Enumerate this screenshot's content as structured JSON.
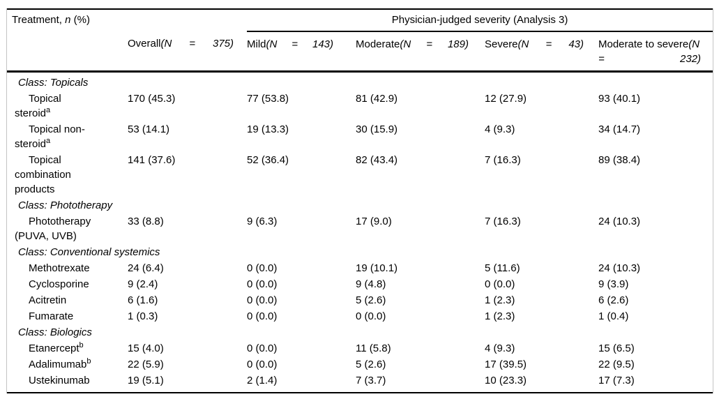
{
  "table": {
    "corner": {
      "pre": "Treatment, ",
      "n": "n",
      "post": " (%)"
    },
    "spanner": "Physician-judged severity (Analysis 3)",
    "columns": [
      {
        "label": "Overall",
        "n_open": "(N",
        "eq": "=",
        "n_close": "375)"
      },
      {
        "label": "Mild",
        "n_open": "(N",
        "eq": "=",
        "n_close": "143)"
      },
      {
        "label": "Moderate",
        "n_open": "(N",
        "eq": "=",
        "n_close": "189)"
      },
      {
        "label": "Severe",
        "n_open": "(N",
        "eq": "=",
        "n_close": "43)"
      },
      {
        "label": "Moderate to severe",
        "n_open": "(N",
        "eq": "=",
        "n_close": "232)"
      }
    ],
    "sections": [
      {
        "class_label": "Class: Topicals",
        "rows": [
          {
            "name": "Topical steroid",
            "sup": "a",
            "values": [
              "170 (45.3)",
              "77 (53.8)",
              "81 (42.9)",
              "12 (27.9)",
              "93 (40.1)"
            ]
          },
          {
            "name": "Topical non-steroid",
            "sup": "a",
            "values": [
              "53 (14.1)",
              "19 (13.3)",
              "30 (15.9)",
              "4 (9.3)",
              "34 (14.7)"
            ]
          },
          {
            "name": "Topical combination products",
            "sup": "",
            "values": [
              "141 (37.6)",
              "52 (36.4)",
              "82 (43.4)",
              "7 (16.3)",
              "89 (38.4)"
            ]
          }
        ]
      },
      {
        "class_label": "Class: Phototherapy",
        "rows": [
          {
            "name": "Phototherapy (PUVA, UVB)",
            "sup": "",
            "values": [
              "33 (8.8)",
              "9 (6.3)",
              "17 (9.0)",
              "7 (16.3)",
              "24 (10.3)"
            ]
          }
        ]
      },
      {
        "class_label": "Class: Conventional systemics",
        "rows": [
          {
            "name": "Methotrexate",
            "sup": "",
            "values": [
              "24 (6.4)",
              "0 (0.0)",
              "19 (10.1)",
              "5 (11.6)",
              "24 (10.3)"
            ]
          },
          {
            "name": "Cyclosporine",
            "sup": "",
            "values": [
              "9 (2.4)",
              "0 (0.0)",
              "9 (4.8)",
              "0 (0.0)",
              "9 (3.9)"
            ]
          },
          {
            "name": "Acitretin",
            "sup": "",
            "values": [
              "6 (1.6)",
              "0 (0.0)",
              "5 (2.6)",
              "1 (2.3)",
              "6 (2.6)"
            ]
          },
          {
            "name": "Fumarate",
            "sup": "",
            "values": [
              "1 (0.3)",
              "0 (0.0)",
              "0 (0.0)",
              "1 (2.3)",
              "1 (0.4)"
            ]
          }
        ]
      },
      {
        "class_label": "Class: Biologics",
        "rows": [
          {
            "name": "Etanercept",
            "sup": "b",
            "values": [
              "15 (4.0)",
              "0 (0.0)",
              "11 (5.8)",
              "4 (9.3)",
              "15 (6.5)"
            ]
          },
          {
            "name": "Adalimumab",
            "sup": "b",
            "values": [
              "22 (5.9)",
              "0 (0.0)",
              "5 (2.6)",
              "17 (39.5)",
              "22 (9.5)"
            ]
          },
          {
            "name": "Ustekinumab",
            "sup": "",
            "values": [
              "19 (5.1)",
              "2 (1.4)",
              "7 (3.7)",
              "10 (23.3)",
              "17 (7.3)"
            ]
          }
        ]
      }
    ]
  },
  "colors": {
    "text": "#000000",
    "rule": "#000000",
    "frame": "#c4c4c4",
    "background": "#ffffff"
  }
}
